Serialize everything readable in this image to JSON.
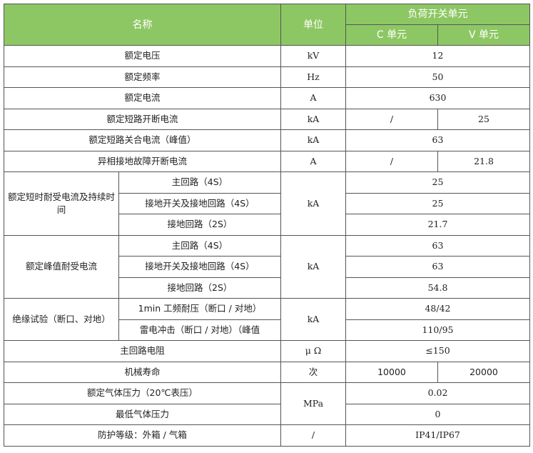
{
  "header": {
    "name": "名称",
    "unit": "单位",
    "group": "负荷开关单元",
    "c": "C 单元",
    "v": "V 单元"
  },
  "rows": {
    "r1": {
      "name": "额定电压",
      "unit": "kV",
      "value": "12"
    },
    "r2": {
      "name": "额定频率",
      "unit": "Hz",
      "value": "50"
    },
    "r3": {
      "name": "额定电流",
      "unit": "A",
      "value": "630"
    },
    "r4": {
      "name": "额定短路开断电流",
      "unit": "kA",
      "c": "/",
      "v": "25"
    },
    "r5": {
      "name": "额定短路关合电流（峰值）",
      "unit": "kA",
      "value": "63"
    },
    "r6": {
      "name": "异相接地故障开断电流",
      "unit": "A",
      "c": "/",
      "v": "21.8"
    },
    "g1": {
      "name": "额定短时耐受电流及持续时间",
      "unit": "kA",
      "items": [
        {
          "sub": "主回路（4S）",
          "value": "25"
        },
        {
          "sub": "接地开关及接地回路（4S）",
          "value": "25"
        },
        {
          "sub": "接地回路（2S）",
          "value": "21.7"
        }
      ]
    },
    "g2": {
      "name": "额定峰值耐受电流",
      "unit": "kA",
      "items": [
        {
          "sub": "主回路（4S）",
          "value": "63"
        },
        {
          "sub": "接地开关及接地回路（4S）",
          "value": "63"
        },
        {
          "sub": "接地回路（2S）",
          "value": "54.8"
        }
      ]
    },
    "g3": {
      "name": "绝缘试验（断口、对地）",
      "unit": "kA",
      "items": [
        {
          "sub": "1min 工频耐压（断口 / 对地）",
          "value": "48/42"
        },
        {
          "sub": "雷电冲击（断口 / 对地）（峰值",
          "value": "110/95"
        }
      ]
    },
    "r7": {
      "name": "主回路电阻",
      "unit": "μ Ω",
      "value": "≤150"
    },
    "r8": {
      "name": "机械寿命",
      "unit": "次",
      "c": "10000",
      "v": "20000"
    },
    "g4": {
      "unit": "MPa",
      "items": [
        {
          "name": "额定气体压力（20℃表压）",
          "value": "0.02"
        },
        {
          "name": "最低气体压力",
          "value": "0"
        }
      ]
    },
    "r9": {
      "name": "防护等级：外箱 / 气箱",
      "unit": "/",
      "value": "IP41/IP67"
    }
  },
  "colors": {
    "header_bg": "#8dc764",
    "header_text": "#ffffff",
    "border": "#555555"
  }
}
